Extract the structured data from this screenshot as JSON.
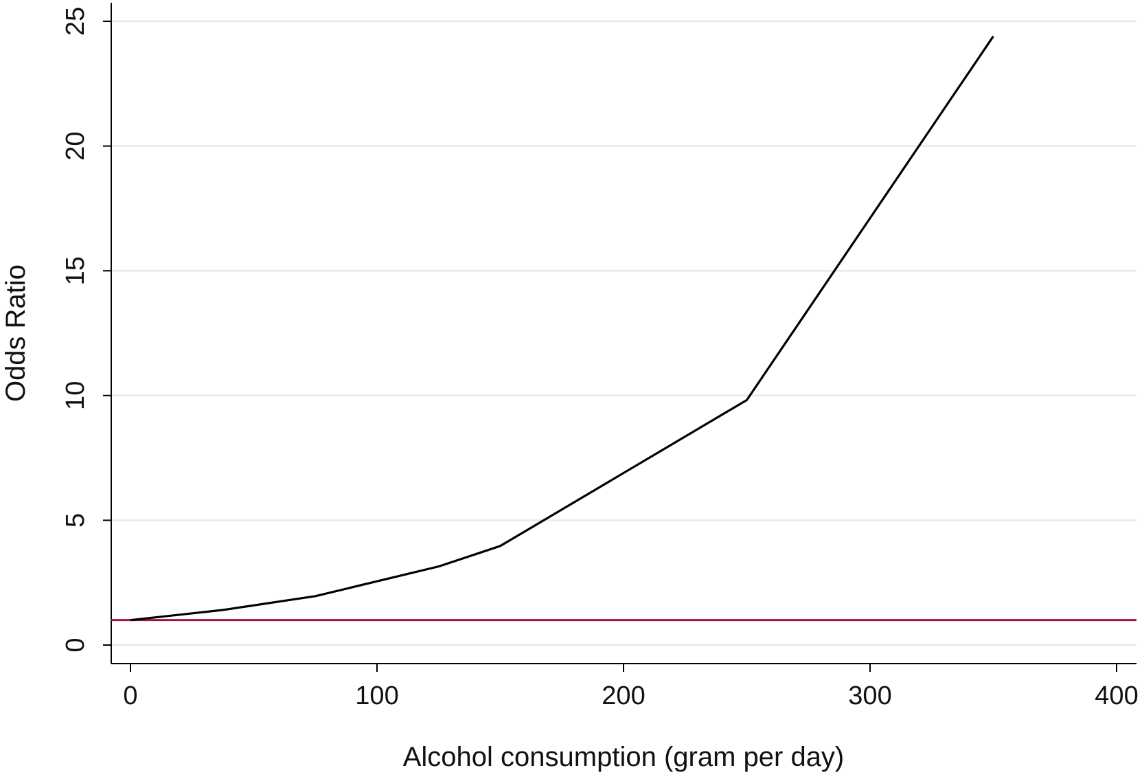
{
  "chart_data": {
    "type": "line",
    "title": "",
    "xlabel": "Alcohol consumption (gram per day)",
    "ylabel": "Odds Ratio",
    "xlim": [
      -8,
      408
    ],
    "ylim": [
      -0.8,
      25.8
    ],
    "xticks": [
      0,
      100,
      200,
      300,
      400
    ],
    "yticks": [
      0,
      5,
      10,
      15,
      20,
      25
    ],
    "grid": "horizontal",
    "series": [
      {
        "x": [
          0,
          37,
          75,
          125,
          150,
          250,
          350
        ],
        "y": [
          1.0,
          1.4,
          1.96,
          3.15,
          3.97,
          9.82,
          24.4
        ],
        "color": "#000000"
      }
    ],
    "reference_line": {
      "y": 1,
      "color": "#a0163a"
    },
    "grid_color": "#e8e8e8"
  }
}
